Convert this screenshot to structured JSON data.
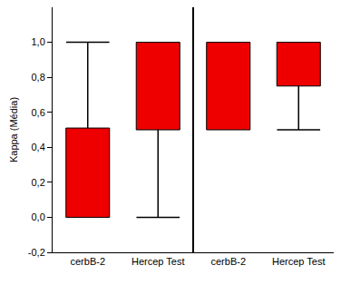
{
  "chart_data": {
    "type": "box",
    "ylabel": "Kappa (Média)",
    "categories": [
      "cerbB-2",
      "Hercep Test",
      "cerbB-2",
      "Hercep Test"
    ],
    "boxes": [
      {
        "q1": 0.0,
        "q3": 0.51,
        "low": 0.0,
        "high": 1.0
      },
      {
        "q1": 0.5,
        "q3": 1.0,
        "low": 0.0,
        "high": 1.0
      },
      {
        "q1": 0.5,
        "q3": 1.0,
        "low": 0.5,
        "high": 1.0
      },
      {
        "q1": 0.75,
        "q3": 1.0,
        "low": 0.5,
        "high": 1.0
      }
    ],
    "color": "#ee0000",
    "ylim": [
      -0.2,
      1.2
    ],
    "yticks": [
      {
        "value": -0.2,
        "label": "-0,2"
      },
      {
        "value": 0,
        "label": "0,0"
      },
      {
        "value": 0.2,
        "label": "0,2"
      },
      {
        "value": 0.4,
        "label": "0,4"
      },
      {
        "value": 0.6,
        "label": "0,6"
      },
      {
        "value": 0.8,
        "label": "0,8"
      },
      {
        "value": 1.0,
        "label": "1,0"
      }
    ],
    "grid": false
  }
}
